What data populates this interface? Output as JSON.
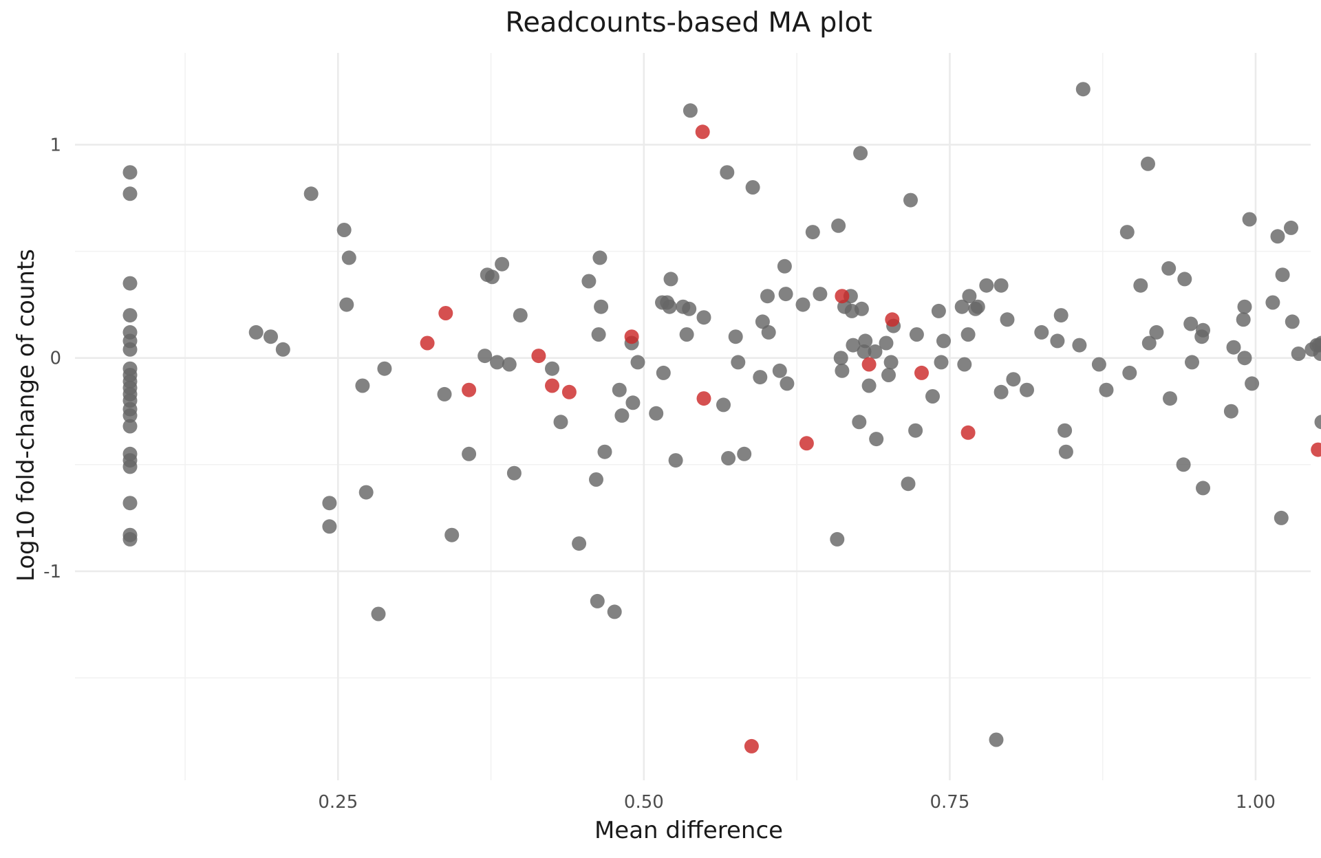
{
  "chart_data": {
    "type": "scatter",
    "title": "Readcounts-based MA plot",
    "xlabel": "Mean difference",
    "ylabel": "Log10 fold-change of counts",
    "xlim": [
      0.035,
      1.045
    ],
    "ylim": [
      -1.98,
      1.43
    ],
    "x_ticks": [
      0.25,
      0.5,
      0.75,
      1.0
    ],
    "x_tick_labels": [
      "0.25",
      "0.50",
      "0.75",
      "1.00"
    ],
    "y_ticks": [
      -1,
      0,
      1
    ],
    "y_tick_labels": [
      "-1",
      "0",
      "1"
    ],
    "grid": true,
    "legend": "none",
    "colors": {
      "grey": "#666666",
      "red": "#cc2929"
    },
    "series": [
      {
        "color": "grey",
        "points": [
          [
            0.08,
            0.87
          ],
          [
            0.08,
            0.77
          ],
          [
            0.08,
            0.35
          ],
          [
            0.08,
            0.2
          ],
          [
            0.08,
            0.12
          ],
          [
            0.08,
            0.08
          ],
          [
            0.08,
            0.04
          ],
          [
            0.08,
            -0.05
          ],
          [
            0.08,
            -0.08
          ],
          [
            0.08,
            -0.11
          ],
          [
            0.08,
            -0.14
          ],
          [
            0.08,
            -0.17
          ],
          [
            0.08,
            -0.2
          ],
          [
            0.08,
            -0.24
          ],
          [
            0.08,
            -0.27
          ],
          [
            0.08,
            -0.32
          ],
          [
            0.08,
            -0.45
          ],
          [
            0.08,
            -0.48
          ],
          [
            0.08,
            -0.51
          ],
          [
            0.08,
            -0.68
          ],
          [
            0.08,
            -0.83
          ],
          [
            0.08,
            -0.85
          ],
          [
            0.183,
            0.12
          ],
          [
            0.195,
            0.1
          ],
          [
            0.205,
            0.04
          ],
          [
            0.228,
            0.77
          ],
          [
            0.243,
            -0.68
          ],
          [
            0.243,
            -0.79
          ],
          [
            0.255,
            0.6
          ],
          [
            0.257,
            0.25
          ],
          [
            0.259,
            0.47
          ],
          [
            0.27,
            -0.13
          ],
          [
            0.273,
            -0.63
          ],
          [
            0.283,
            -1.2
          ],
          [
            0.288,
            -0.05
          ],
          [
            0.337,
            -0.17
          ],
          [
            0.343,
            -0.83
          ],
          [
            0.357,
            -0.45
          ],
          [
            0.37,
            0.01
          ],
          [
            0.372,
            0.39
          ],
          [
            0.376,
            0.38
          ],
          [
            0.38,
            -0.02
          ],
          [
            0.384,
            0.44
          ],
          [
            0.39,
            -0.03
          ],
          [
            0.394,
            -0.54
          ],
          [
            0.399,
            0.2
          ],
          [
            0.425,
            -0.05
          ],
          [
            0.432,
            -0.3
          ],
          [
            0.447,
            -0.87
          ],
          [
            0.455,
            0.36
          ],
          [
            0.461,
            -0.57
          ],
          [
            0.462,
            -1.14
          ],
          [
            0.463,
            0.11
          ],
          [
            0.464,
            0.47
          ],
          [
            0.465,
            0.24
          ],
          [
            0.468,
            -0.44
          ],
          [
            0.476,
            -1.19
          ],
          [
            0.48,
            -0.15
          ],
          [
            0.482,
            -0.27
          ],
          [
            0.49,
            0.07
          ],
          [
            0.491,
            -0.21
          ],
          [
            0.495,
            -0.02
          ],
          [
            0.51,
            -0.26
          ],
          [
            0.515,
            0.26
          ],
          [
            0.516,
            -0.07
          ],
          [
            0.519,
            0.26
          ],
          [
            0.521,
            0.24
          ],
          [
            0.522,
            0.37
          ],
          [
            0.526,
            -0.48
          ],
          [
            0.532,
            0.24
          ],
          [
            0.535,
            0.11
          ],
          [
            0.537,
            0.23
          ],
          [
            0.538,
            1.16
          ],
          [
            0.549,
            0.19
          ],
          [
            0.565,
            -0.22
          ],
          [
            0.568,
            0.87
          ],
          [
            0.569,
            -0.47
          ],
          [
            0.575,
            0.1
          ],
          [
            0.577,
            -0.02
          ],
          [
            0.582,
            -0.45
          ],
          [
            0.589,
            0.8
          ],
          [
            0.595,
            -0.09
          ],
          [
            0.597,
            0.17
          ],
          [
            0.601,
            0.29
          ],
          [
            0.602,
            0.12
          ],
          [
            0.611,
            -0.06
          ],
          [
            0.615,
            0.43
          ],
          [
            0.616,
            0.3
          ],
          [
            0.617,
            -0.12
          ],
          [
            0.63,
            0.25
          ],
          [
            0.638,
            0.59
          ],
          [
            0.644,
            0.3
          ],
          [
            0.658,
            -0.85
          ],
          [
            0.659,
            0.62
          ],
          [
            0.661,
            0.0
          ],
          [
            0.662,
            -0.06
          ],
          [
            0.664,
            0.24
          ],
          [
            0.669,
            0.29
          ],
          [
            0.67,
            0.22
          ],
          [
            0.671,
            0.06
          ],
          [
            0.676,
            -0.3
          ],
          [
            0.677,
            0.96
          ],
          [
            0.678,
            0.23
          ],
          [
            0.68,
            0.03
          ],
          [
            0.681,
            0.08
          ],
          [
            0.684,
            -0.13
          ],
          [
            0.689,
            0.03
          ],
          [
            0.69,
            -0.38
          ],
          [
            0.698,
            0.07
          ],
          [
            0.7,
            -0.08
          ],
          [
            0.702,
            -0.02
          ],
          [
            0.704,
            0.15
          ],
          [
            0.716,
            -0.59
          ],
          [
            0.718,
            0.74
          ],
          [
            0.722,
            -0.34
          ],
          [
            0.723,
            0.11
          ],
          [
            0.736,
            -0.18
          ],
          [
            0.741,
            0.22
          ],
          [
            0.743,
            -0.02
          ],
          [
            0.745,
            0.08
          ],
          [
            0.76,
            0.24
          ],
          [
            0.762,
            -0.03
          ],
          [
            0.765,
            0.11
          ],
          [
            0.766,
            0.29
          ],
          [
            0.771,
            0.23
          ],
          [
            0.773,
            0.24
          ],
          [
            0.78,
            0.34
          ],
          [
            0.788,
            -1.79
          ],
          [
            0.792,
            -0.16
          ],
          [
            0.792,
            0.34
          ],
          [
            0.797,
            0.18
          ],
          [
            0.802,
            -0.1
          ],
          [
            0.813,
            -0.15
          ],
          [
            0.825,
            0.12
          ],
          [
            0.838,
            0.08
          ],
          [
            0.841,
            0.2
          ],
          [
            0.844,
            -0.34
          ],
          [
            0.845,
            -0.44
          ],
          [
            0.856,
            0.06
          ],
          [
            0.859,
            1.26
          ],
          [
            0.872,
            -0.03
          ],
          [
            0.878,
            -0.15
          ],
          [
            0.895,
            0.59
          ],
          [
            0.897,
            -0.07
          ],
          [
            0.906,
            0.34
          ],
          [
            0.929,
            0.42
          ],
          [
            0.93,
            -0.19
          ],
          [
            0.912,
            0.91
          ],
          [
            0.913,
            0.07
          ],
          [
            0.919,
            0.12
          ],
          [
            0.941,
            -0.5
          ],
          [
            0.942,
            0.37
          ],
          [
            0.947,
            0.16
          ],
          [
            0.948,
            -0.02
          ],
          [
            0.956,
            0.1
          ],
          [
            0.957,
            0.13
          ],
          [
            0.957,
            -0.61
          ],
          [
            0.98,
            -0.25
          ],
          [
            0.982,
            0.05
          ],
          [
            0.99,
            0.18
          ],
          [
            0.991,
            0.24
          ],
          [
            0.991,
            0.0
          ],
          [
            0.995,
            0.65
          ],
          [
            0.997,
            -0.12
          ],
          [
            1.014,
            0.26
          ],
          [
            1.018,
            0.57
          ],
          [
            1.022,
            0.39
          ],
          [
            1.021,
            -0.75
          ],
          [
            1.029,
            0.61
          ],
          [
            1.03,
            0.17
          ],
          [
            1.035,
            0.02
          ],
          [
            1.046,
            0.04
          ],
          [
            1.05,
            0.06
          ],
          [
            1.052,
            0.06
          ],
          [
            1.053,
            0.02
          ],
          [
            1.054,
            0.07
          ],
          [
            1.054,
            -0.3
          ]
        ]
      },
      {
        "color": "red",
        "points": [
          [
            0.323,
            0.07
          ],
          [
            0.338,
            0.21
          ],
          [
            0.357,
            -0.15
          ],
          [
            0.414,
            0.01
          ],
          [
            0.425,
            -0.13
          ],
          [
            0.439,
            -0.16
          ],
          [
            0.49,
            0.1
          ],
          [
            0.548,
            1.06
          ],
          [
            0.549,
            -0.19
          ],
          [
            0.588,
            -1.82
          ],
          [
            0.633,
            -0.4
          ],
          [
            0.662,
            0.29
          ],
          [
            0.684,
            -0.03
          ],
          [
            0.703,
            0.18
          ],
          [
            0.727,
            -0.07
          ],
          [
            0.765,
            -0.35
          ],
          [
            1.051,
            -0.43
          ]
        ]
      }
    ]
  }
}
